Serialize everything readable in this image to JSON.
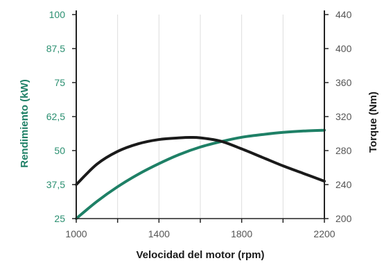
{
  "chart_data": {
    "type": "line",
    "xlabel": "Velocidad del motor (rpm)",
    "ylabel_left": "Rendimiento (kW)",
    "ylabel_right": "Torque (Nm)",
    "x_ticks": [
      "1000",
      "1400",
      "1800",
      "2200"
    ],
    "y_left_ticks": [
      "25",
      "37,5",
      "50",
      "62,5",
      "75",
      "87,5",
      "100"
    ],
    "y_right_ticks": [
      "200",
      "240",
      "280",
      "320",
      "360",
      "400",
      "440"
    ],
    "xlim": [
      1000,
      2200
    ],
    "ylim_left": [
      25,
      100
    ],
    "ylim_right": [
      200,
      440
    ],
    "grid": "vertical",
    "colors": {
      "power": "#1e8066",
      "torque": "#1a1a1a",
      "left_axis_text": "#2a8f70",
      "right_axis_text": "#555555",
      "x_axis_text": "#555555",
      "grid": "#dddddd"
    },
    "series": [
      {
        "axis": "left",
        "color": "#1e8066",
        "x": [
          1000,
          1100,
          1200,
          1300,
          1400,
          1500,
          1600,
          1700,
          1800,
          1900,
          2000,
          2100,
          2200
        ],
        "y": [
          25,
          31.3,
          36.7,
          41.3,
          45.2,
          48.6,
          51.3,
          53.3,
          54.9,
          55.9,
          56.7,
          57.2,
          57.5
        ]
      },
      {
        "axis": "right",
        "color": "#1a1a1a",
        "x": [
          1000,
          1100,
          1200,
          1300,
          1400,
          1500,
          1550,
          1600,
          1700,
          1800,
          1900,
          2000,
          2100,
          2200
        ],
        "y": [
          240,
          264,
          279,
          288,
          293,
          295,
          295.5,
          295,
          291,
          282,
          272,
          262,
          253,
          244
        ]
      }
    ]
  }
}
